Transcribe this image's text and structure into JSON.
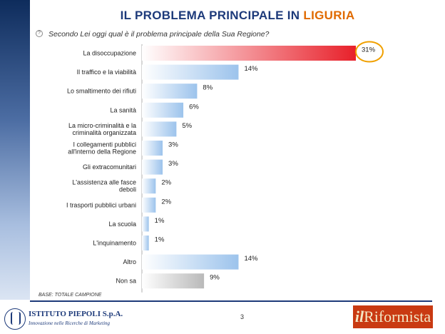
{
  "slide": {
    "title_main": "IL PROBLEMA PRINCIPALE IN",
    "title_accent": "LIGURIA",
    "question": "Secondo Lei oggi qual è il problema principale della Sua Regione?",
    "base_note": "BASE: TOTALE CAMPIONE",
    "page_number": "3"
  },
  "logos": {
    "left_name": "ISTITUTO PIEPOLI S.p.A.",
    "left_tagline": "Innovazione nelle Ricerche di Marketing",
    "right_prefix": "il",
    "right_name": "Riformista"
  },
  "colors": {
    "highlight_bar": "#e8202a",
    "blue_bar": "#9cc3ec",
    "grey_bar": "#b9b9b9",
    "circle": "#f0a000",
    "title": "#1d3a7a",
    "title_accent": "#e06a00"
  },
  "chart_data": {
    "type": "bar",
    "orientation": "horizontal",
    "categories": [
      [
        "La disoccupazione"
      ],
      [
        "Il traffico e la viabilità"
      ],
      [
        "Lo smaltimento dei rifiuti"
      ],
      [
        "La sanità"
      ],
      [
        "La micro-criminalità e la",
        "criminalità organizzata"
      ],
      [
        "I collegamenti pubblici",
        "all'interno della Regione"
      ],
      [
        "Gli extracomunitari"
      ],
      [
        "L'assistenza alle fasce",
        "deboli"
      ],
      [
        "I trasporti pubblici urbani"
      ],
      [
        "La scuola"
      ],
      [
        "L'inquinamento"
      ],
      [
        "Altro"
      ],
      [
        "Non sa"
      ]
    ],
    "values": [
      31,
      14,
      8,
      6,
      5,
      3,
      3,
      2,
      2,
      1,
      1,
      14,
      9
    ],
    "data_labels": [
      "31%",
      "14%",
      "8%",
      "6%",
      "5%",
      "3%",
      "3%",
      "2%",
      "2%",
      "1%",
      "1%",
      "14%",
      "9%"
    ],
    "highlighted_index": 0,
    "circled_index": 0,
    "xlim": [
      0,
      31
    ],
    "grid": false,
    "legend": "none"
  }
}
